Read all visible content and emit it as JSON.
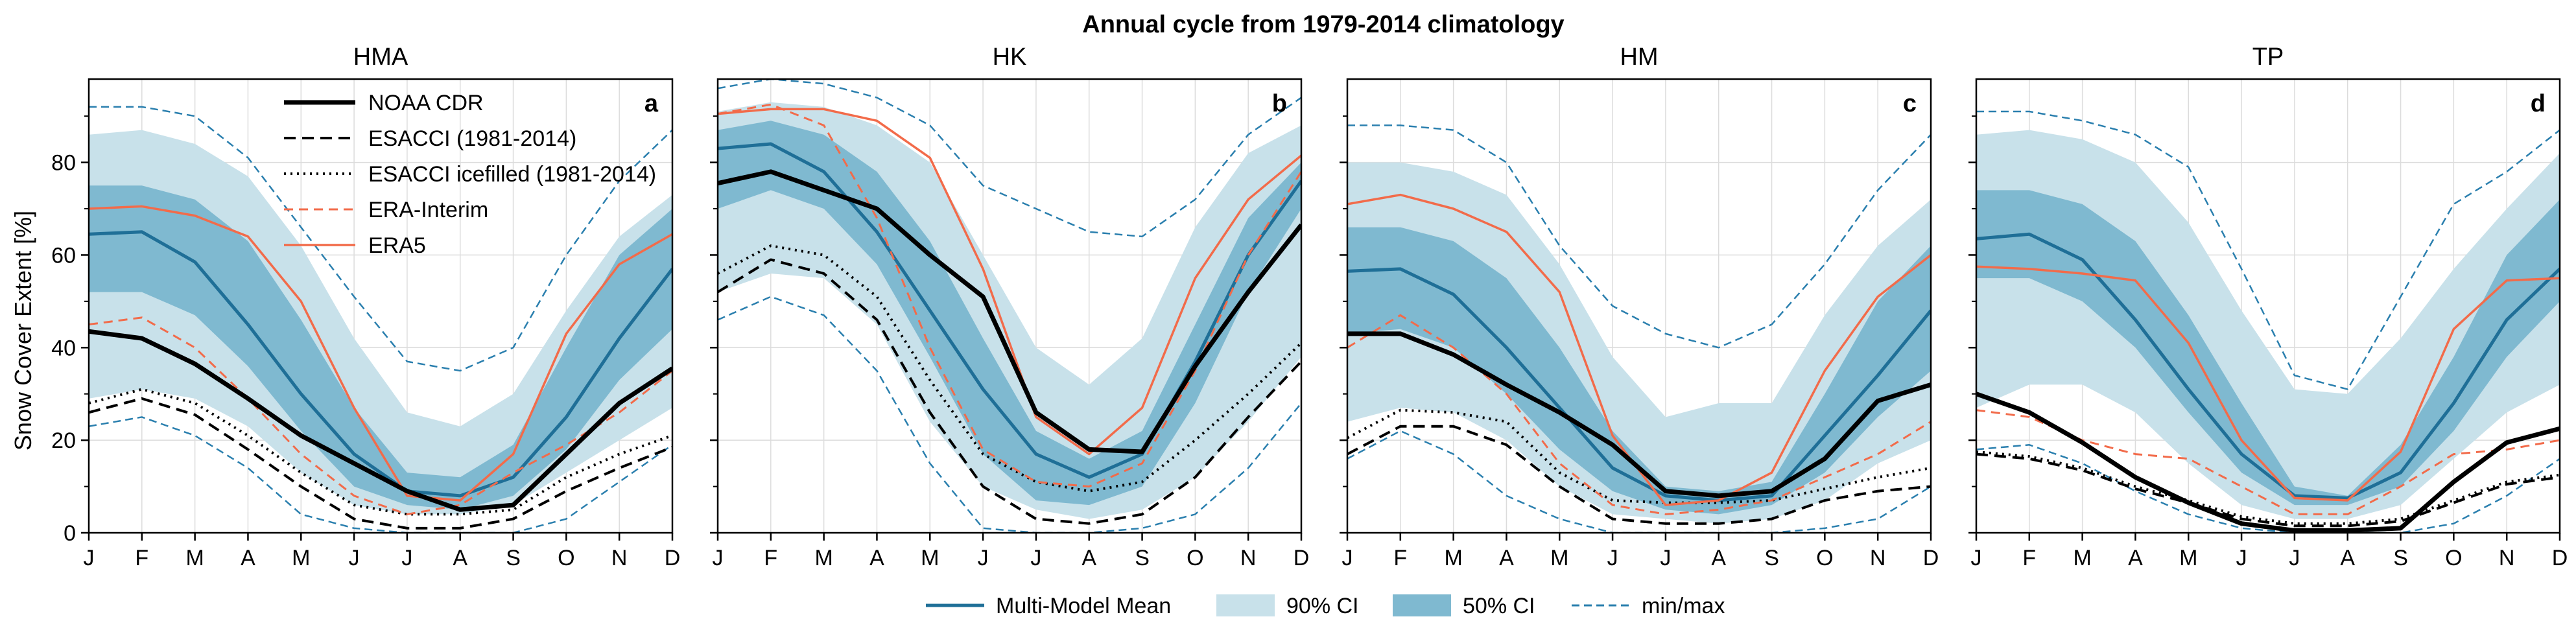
{
  "figure": {
    "suptitle": "Annual cycle from 1979-2014 climatology",
    "ylabel": "Snow Cover Extent [%]"
  },
  "colors": {
    "mmm": "#1f6f97",
    "ci90": "#c8e1ea",
    "ci50": "#7fb9d0",
    "minmax": "#2a7fae",
    "noaa": "#000000",
    "esacci": "#000000",
    "era_interim": "#f26b4a",
    "era5": "#f26b4a"
  },
  "legend_top": {
    "placement": "upper-left of panel a",
    "items": [
      {
        "key": "noaa",
        "label": "NOAA CDR"
      },
      {
        "key": "esacci",
        "label": "ESACCI (1981-2014)"
      },
      {
        "key": "esacci_ice",
        "label": "ESACCI icefilled (1981-2014)"
      },
      {
        "key": "era_interim",
        "label": "ERA-Interim"
      },
      {
        "key": "era5",
        "label": "ERA5"
      }
    ]
  },
  "legend_bottom": {
    "placement": "bottom-center",
    "items": [
      {
        "key": "mmm",
        "label": "Multi-Model Mean"
      },
      {
        "key": "ci90",
        "label": "90% CI"
      },
      {
        "key": "ci50",
        "label": "50% CI"
      },
      {
        "key": "minmax",
        "label": "min/max"
      }
    ]
  },
  "chart_data": [
    {
      "type": "area",
      "title": "HMA",
      "panel_letter": "a",
      "categories": [
        "J",
        "F",
        "M",
        "A",
        "M",
        "J",
        "J",
        "A",
        "S",
        "O",
        "N",
        "D"
      ],
      "ylim": [
        0,
        98
      ],
      "yticks": [
        0,
        20,
        40,
        60,
        80
      ],
      "grid": true,
      "series": {
        "ci90_low": [
          29,
          31,
          29,
          23,
          13,
          6,
          4,
          4,
          6,
          13,
          20,
          27
        ],
        "ci90_high": [
          86,
          87,
          84,
          77,
          62,
          42,
          26,
          23,
          30,
          48,
          64,
          73
        ],
        "ci50_low": [
          52,
          52,
          47,
          36,
          22,
          10,
          6,
          5,
          8,
          18,
          33,
          44
        ],
        "ci50_high": [
          75,
          75,
          72,
          63,
          46,
          27,
          13,
          12,
          19,
          40,
          60,
          70
        ],
        "min": [
          23,
          25,
          21,
          14,
          4,
          1,
          0,
          0,
          0,
          3,
          11,
          19
        ],
        "max": [
          92,
          92,
          90,
          81,
          66,
          51,
          37,
          35,
          40,
          60,
          76,
          87
        ],
        "mmm": [
          64.5,
          65,
          58.5,
          45,
          30,
          17,
          9,
          8,
          12,
          25,
          42,
          57
        ],
        "noaa": [
          43.5,
          42,
          36.5,
          29,
          21,
          15,
          9,
          5,
          6,
          17,
          28,
          35.5
        ],
        "esacci": [
          26,
          29,
          25.5,
          18,
          10,
          3,
          1,
          1,
          3,
          9,
          14,
          18.5
        ],
        "esacci_ice": [
          28,
          31,
          28,
          21,
          13,
          6,
          4,
          4,
          5,
          12,
          17,
          21
        ],
        "era_interim": [
          45,
          46.5,
          40,
          29,
          17,
          8,
          4,
          6,
          13,
          19,
          26,
          35
        ],
        "era5": [
          70,
          70.5,
          68.5,
          64,
          50,
          27,
          8,
          7,
          17,
          43,
          58,
          64.5
        ]
      }
    },
    {
      "type": "area",
      "title": "HK",
      "panel_letter": "b",
      "categories": [
        "J",
        "F",
        "M",
        "A",
        "M",
        "J",
        "J",
        "A",
        "S",
        "O",
        "N",
        "D"
      ],
      "ylim": [
        0,
        98
      ],
      "yticks": [
        0,
        20,
        40,
        60,
        80
      ],
      "grid": true,
      "series": {
        "ci90_low": [
          52,
          56,
          55,
          45,
          24,
          10,
          5,
          3,
          5,
          12,
          24,
          38
        ],
        "ci90_high": [
          91,
          93,
          92,
          88,
          80,
          60,
          40,
          32,
          42,
          66,
          82,
          88
        ],
        "ci50_low": [
          70,
          74,
          70,
          58,
          38,
          17,
          7,
          6,
          10,
          28,
          52,
          70
        ],
        "ci50_high": [
          87,
          89,
          86,
          78,
          63,
          42,
          22,
          16,
          22,
          45,
          68,
          80
        ],
        "min": [
          46,
          51,
          47,
          35,
          15,
          1,
          0,
          0,
          1,
          4,
          14,
          28
        ],
        "max": [
          96,
          98,
          97,
          94,
          88,
          75,
          70,
          65,
          64,
          72,
          86,
          94
        ],
        "mmm": [
          83,
          84,
          78,
          65,
          48,
          31,
          17,
          12,
          17,
          37,
          60,
          76
        ],
        "noaa": [
          75.5,
          78,
          74,
          70,
          60,
          51,
          26,
          18,
          17.5,
          36,
          52,
          66.5
        ],
        "esacci": [
          52,
          59,
          56,
          46,
          26,
          10,
          3,
          2,
          4,
          12,
          25,
          37
        ],
        "esacci_ice": [
          56,
          62,
          60,
          51,
          33,
          17,
          11,
          9,
          11,
          20,
          30,
          41
        ],
        "era_interim": [
          90.5,
          92.5,
          88,
          68,
          40,
          18,
          11,
          10,
          15,
          35,
          60,
          78
        ],
        "era5": [
          90.5,
          91.5,
          91.5,
          89,
          81,
          57,
          25,
          17,
          27,
          55,
          72,
          81.5
        ]
      }
    },
    {
      "type": "area",
      "title": "HM",
      "panel_letter": "c",
      "categories": [
        "J",
        "F",
        "M",
        "A",
        "M",
        "J",
        "J",
        "A",
        "S",
        "O",
        "N",
        "D"
      ],
      "ylim": [
        0,
        98
      ],
      "yticks": [
        0,
        20,
        40,
        60,
        80
      ],
      "grid": true,
      "series": {
        "ci90_low": [
          24,
          27,
          26,
          20,
          10,
          4,
          3,
          2,
          3,
          7,
          15,
          20
        ],
        "ci90_high": [
          80,
          80,
          78,
          73,
          58,
          38,
          25,
          28,
          28,
          47,
          62,
          72
        ],
        "ci50_low": [
          43,
          44,
          40,
          30,
          18,
          9,
          5,
          4,
          6,
          13,
          25,
          35
        ],
        "ci50_high": [
          66,
          66,
          63,
          55,
          40,
          22,
          10,
          9,
          11,
          30,
          50,
          62
        ],
        "min": [
          16,
          22,
          17,
          8,
          3,
          0,
          0,
          0,
          0,
          1,
          3,
          10
        ],
        "max": [
          88,
          88,
          87,
          80,
          62,
          49,
          43,
          40,
          45,
          58,
          74,
          86
        ],
        "mmm": [
          56.5,
          57,
          51.5,
          40,
          27,
          14,
          8,
          7,
          8,
          21,
          34,
          48
        ],
        "noaa": [
          43,
          43,
          38.5,
          32,
          26,
          19,
          9,
          8,
          9,
          16,
          28.5,
          32
        ],
        "esacci": [
          17,
          23,
          23,
          19,
          10,
          3,
          2,
          2,
          3,
          7,
          9,
          10
        ],
        "esacci_ice": [
          20.5,
          26.5,
          26,
          24,
          13,
          7,
          6.5,
          6.5,
          7,
          9.5,
          12,
          14
        ],
        "era_interim": [
          40,
          47,
          40,
          30,
          15,
          6,
          4,
          5,
          7,
          12,
          17,
          24
        ],
        "era5": [
          71,
          73,
          70,
          65,
          52,
          21,
          6,
          7,
          13,
          35,
          51,
          60
        ]
      }
    },
    {
      "type": "area",
      "title": "TP",
      "panel_letter": "d",
      "categories": [
        "J",
        "F",
        "M",
        "A",
        "M",
        "J",
        "J",
        "A",
        "S",
        "O",
        "N",
        "D"
      ],
      "ylim": [
        0,
        98
      ],
      "yticks": [
        0,
        20,
        40,
        60,
        80
      ],
      "grid": true,
      "series": {
        "ci90_low": [
          27,
          32,
          32,
          26,
          15,
          6,
          3,
          3,
          6,
          16,
          26,
          32
        ],
        "ci90_high": [
          86,
          87,
          85,
          80,
          67,
          48,
          31,
          30,
          42,
          57,
          70,
          82
        ],
        "ci50_low": [
          55,
          55,
          50,
          40,
          26,
          13,
          6,
          6,
          10,
          22,
          38,
          50
        ],
        "ci50_high": [
          74,
          74,
          71,
          63,
          47,
          28,
          10,
          8,
          19,
          38,
          60,
          72
        ],
        "min": [
          18,
          19,
          15,
          9,
          4,
          1,
          0,
          0,
          0,
          2,
          8,
          16
        ],
        "max": [
          91,
          91,
          89,
          86,
          79,
          57,
          34,
          31,
          51,
          71,
          78,
          87
        ],
        "mmm": [
          63.5,
          64.5,
          59,
          46,
          31,
          17,
          8,
          7.5,
          13,
          28,
          46,
          57
        ],
        "noaa": [
          30,
          26,
          19.5,
          12,
          6.5,
          2,
          0.5,
          0.5,
          1,
          11,
          19.5,
          22.5
        ],
        "esacci": [
          17,
          16,
          13.5,
          9.5,
          6.5,
          3,
          1.5,
          1.5,
          2.5,
          6.5,
          10.5,
          12
        ],
        "esacci_ice": [
          17.5,
          16.5,
          14,
          10,
          7,
          3.5,
          2,
          2,
          3,
          7,
          11,
          12.5
        ],
        "era_interim": [
          26.5,
          25,
          20,
          17,
          16,
          10,
          4,
          4,
          10,
          17,
          18,
          20
        ],
        "era5": [
          57.5,
          57,
          56,
          54.5,
          41,
          20,
          7.5,
          7,
          17.5,
          44,
          54.5,
          55
        ]
      }
    }
  ]
}
